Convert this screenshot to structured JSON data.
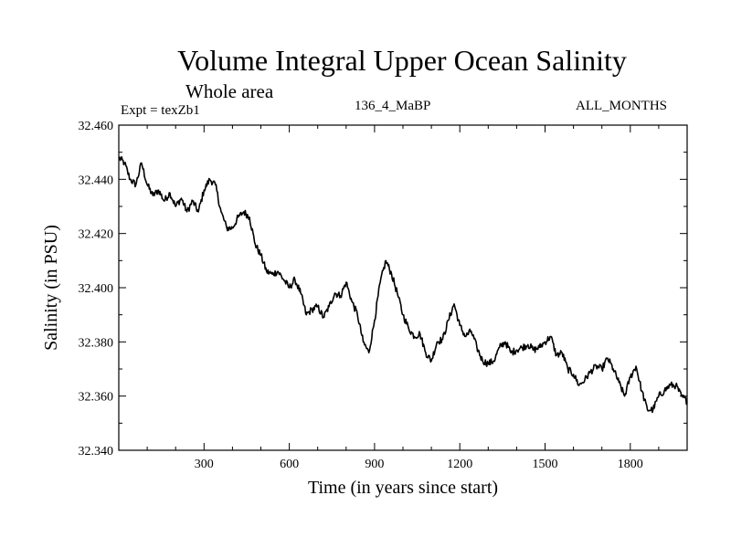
{
  "chart_data": {
    "type": "line",
    "title": "Volume Integral Upper Ocean Salinity",
    "subtitle": "Whole area",
    "annotations": {
      "experiment": "Expt = texZb1",
      "period": "136_4_MaBP",
      "months": "ALL_MONTHS"
    },
    "xlabel": "Time (in years since start)",
    "ylabel": "Salinity (in PSU)",
    "xlim": [
      0,
      2000
    ],
    "ylim": [
      32.34,
      32.46
    ],
    "xticks": [
      300,
      600,
      900,
      1200,
      1500,
      1800
    ],
    "xtick_labels": [
      "300",
      "600",
      "900",
      "1200",
      "1500",
      "1800"
    ],
    "yticks": [
      32.34,
      32.36,
      32.38,
      32.4,
      32.42,
      32.44,
      32.46
    ],
    "ytick_labels": [
      "32.340",
      "32.360",
      "32.380",
      "32.400",
      "32.420",
      "32.440",
      "32.460"
    ],
    "grid": false,
    "series": [
      {
        "name": "Salinity",
        "color": "#000000",
        "x": [
          0,
          20,
          40,
          60,
          80,
          100,
          120,
          140,
          160,
          180,
          200,
          220,
          240,
          260,
          280,
          300,
          320,
          340,
          360,
          380,
          400,
          420,
          440,
          460,
          480,
          500,
          520,
          540,
          560,
          580,
          600,
          620,
          640,
          660,
          680,
          700,
          720,
          740,
          760,
          780,
          800,
          820,
          840,
          860,
          880,
          900,
          920,
          940,
          960,
          980,
          1000,
          1020,
          1040,
          1060,
          1080,
          1100,
          1120,
          1140,
          1160,
          1180,
          1200,
          1220,
          1240,
          1260,
          1280,
          1300,
          1320,
          1340,
          1360,
          1380,
          1400,
          1420,
          1440,
          1460,
          1480,
          1500,
          1520,
          1540,
          1560,
          1580,
          1600,
          1620,
          1640,
          1660,
          1680,
          1700,
          1720,
          1740,
          1760,
          1780,
          1800,
          1820,
          1840,
          1860,
          1880,
          1900,
          1920,
          1940,
          1960,
          1980,
          2000
        ],
        "values": [
          32.448,
          32.446,
          32.44,
          32.438,
          32.446,
          32.438,
          32.434,
          32.436,
          32.432,
          32.435,
          32.43,
          32.433,
          32.428,
          32.432,
          32.428,
          32.436,
          32.44,
          32.438,
          32.428,
          32.422,
          32.422,
          32.426,
          32.428,
          32.426,
          32.416,
          32.412,
          32.406,
          32.405,
          32.406,
          32.403,
          32.4,
          32.403,
          32.398,
          32.39,
          32.392,
          32.393,
          32.389,
          32.393,
          32.398,
          32.397,
          32.402,
          32.395,
          32.39,
          32.38,
          32.376,
          32.388,
          32.402,
          32.41,
          32.405,
          32.398,
          32.39,
          32.385,
          32.382,
          32.383,
          32.376,
          32.373,
          32.38,
          32.381,
          32.388,
          32.394,
          32.386,
          32.382,
          32.384,
          32.378,
          32.373,
          32.372,
          32.373,
          32.378,
          32.38,
          32.376,
          32.377,
          32.378,
          32.379,
          32.377,
          32.378,
          32.38,
          32.382,
          32.375,
          32.376,
          32.37,
          32.368,
          32.364,
          32.366,
          32.369,
          32.371,
          32.37,
          32.374,
          32.37,
          32.365,
          32.36,
          32.367,
          32.371,
          32.362,
          32.355,
          32.355,
          32.36,
          32.362,
          32.364,
          32.364,
          32.36,
          32.358
        ]
      }
    ]
  }
}
